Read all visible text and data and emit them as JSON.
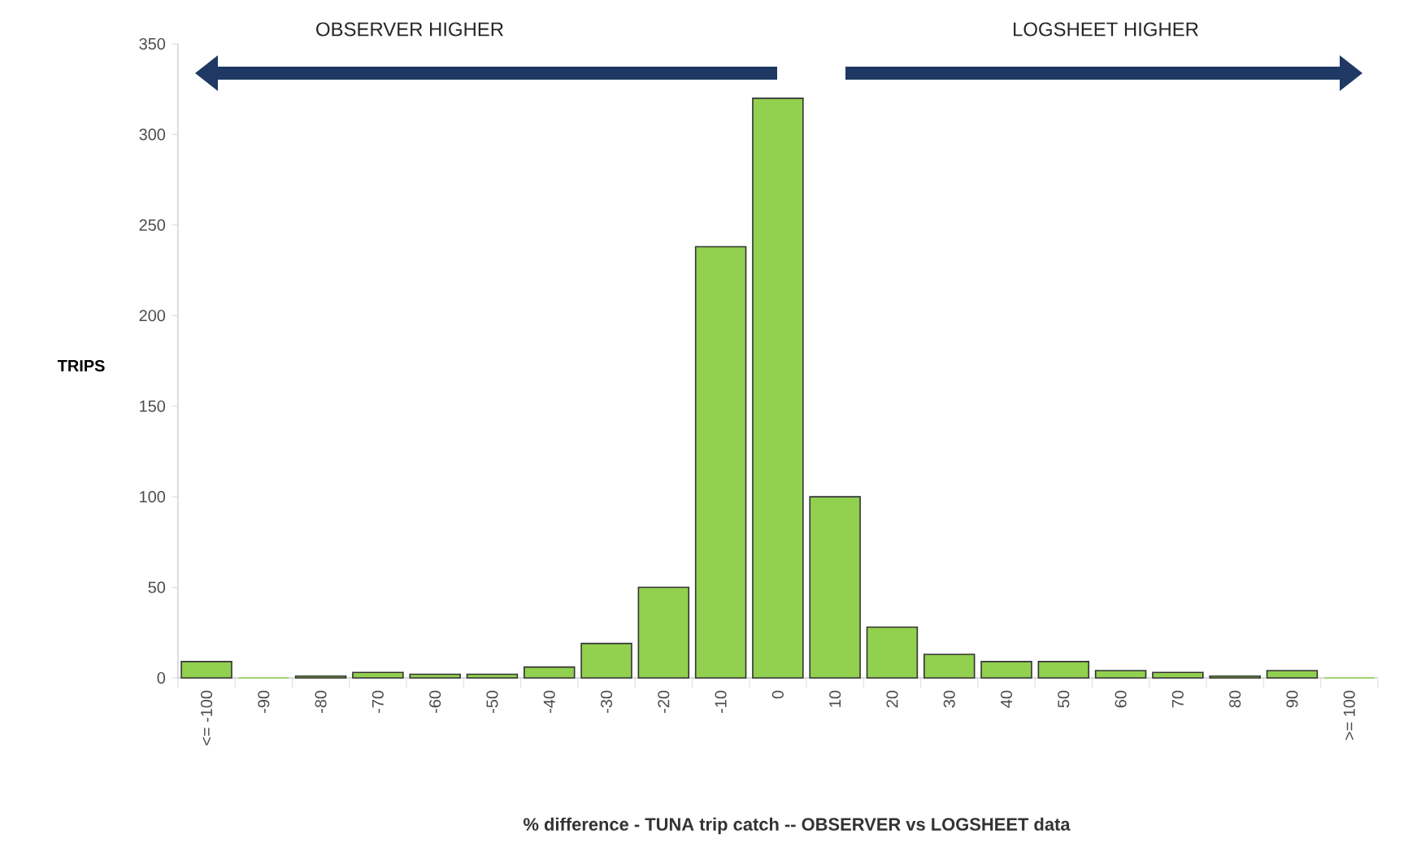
{
  "chart_data": {
    "type": "bar",
    "categories": [
      "<= -100",
      "-90",
      "-80",
      "-70",
      "-60",
      "-50",
      "-40",
      "-30",
      "-20",
      "-10",
      "0",
      "10",
      "20",
      "30",
      "40",
      "50",
      "60",
      "70",
      "80",
      "90",
      ">= 100"
    ],
    "values": [
      9,
      0,
      1,
      3,
      2,
      2,
      6,
      19,
      50,
      238,
      320,
      100,
      28,
      13,
      9,
      9,
      4,
      3,
      1,
      4,
      0
    ],
    "color": "#92d050",
    "ylim": [
      0,
      350
    ],
    "yticks": [
      0,
      50,
      100,
      150,
      200,
      250,
      300,
      350
    ],
    "ylabel": "TRIPS",
    "xlabel": "% difference - TUNA trip catch -- OBSERVER vs LOGSHEET data",
    "annotations": [
      "OBSERVER  HIGHER",
      "LOGSHEET HIGHER"
    ],
    "grid": false
  }
}
